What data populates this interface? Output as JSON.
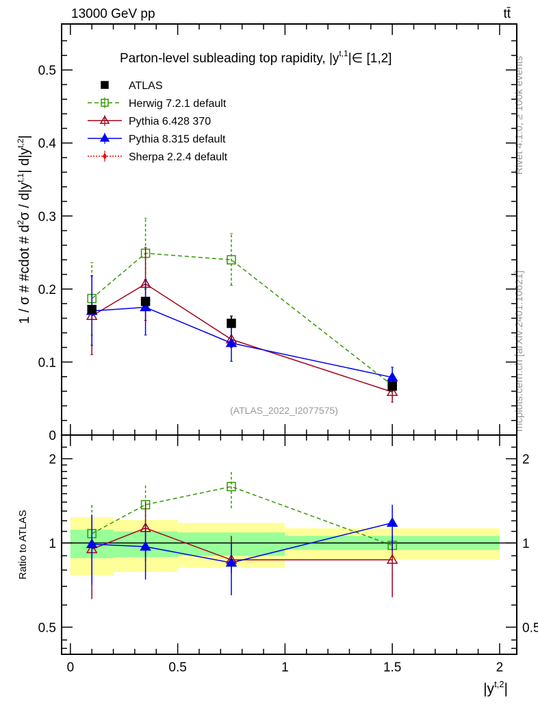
{
  "header": {
    "left": "13000 GeV pp",
    "right": "tt̄"
  },
  "side_labels": {
    "rivet": "Rivet 4.1.0, ≥ 100k events",
    "mcplots": "mcplots.cern.ch [arXiv:2401.10621]"
  },
  "chart_data": [
    {
      "type": "scatter",
      "title": "Parton-level subleading top rapidity, |y^{t,1}| ∈ [1,2]",
      "title_text": "Parton-level subleading top rapidity, |y",
      "title_sup": "t,1",
      "title_tail": "|∈ [1,2]",
      "ylabel": "1 / σ # #cdot # d²σ / d|y^{t,1}| d|y^{t,2}|",
      "xlabel": "|y^{t,2}|",
      "watermark": "(ATLAS_2022_I2077575)",
      "xlim": [
        -0.041,
        2.08
      ],
      "ylim": [
        0,
        0.563
      ],
      "yticks": [
        0,
        0.1,
        0.2,
        0.3,
        0.4,
        0.5
      ],
      "ytick_labels": [
        "0",
        "0.1",
        "0.2",
        "0.3",
        "0.4",
        "0.5"
      ],
      "legend_position": "top-left",
      "x": [
        0.1,
        0.35,
        0.75,
        1.5
      ],
      "series": [
        {
          "name": "ATLAS",
          "color": "#000000",
          "marker": "square-filled",
          "dash": "none",
          "values": [
            0.172,
            0.183,
            0.153,
            0.067
          ],
          "err_lo": [
            0.172,
            0.183,
            0.153,
            0.067
          ],
          "err_hi": [
            0.172,
            0.183,
            0.163,
            0.067
          ]
        },
        {
          "name": "Herwig 7.2.1 default",
          "color": "#339900",
          "marker": "square-open",
          "dash": "dashed",
          "values": [
            0.187,
            0.249,
            0.24,
            0.068
          ],
          "err_lo": [
            0.137,
            0.2,
            0.205,
            0.06
          ],
          "err_hi": [
            0.236,
            0.297,
            0.276,
            0.075
          ]
        },
        {
          "name": "Pythia 6.428 370",
          "color": "#a0001c",
          "marker": "triangle-open",
          "dash": "solid",
          "values": [
            0.163,
            0.207,
            0.131,
            0.059
          ],
          "err_lo": [
            0.11,
            0.157,
            0.12,
            0.045
          ],
          "err_hi": [
            0.218,
            0.257,
            0.163,
            0.07
          ]
        },
        {
          "name": "Pythia 8.315 default",
          "color": "#0000ee",
          "marker": "triangle-filled",
          "dash": "solid",
          "values": [
            0.17,
            0.175,
            0.126,
            0.079
          ],
          "err_lo": [
            0.123,
            0.137,
            0.101,
            0.065
          ],
          "err_hi": [
            0.218,
            0.213,
            0.15,
            0.093
          ]
        },
        {
          "name": "Sherpa 2.2.4 default",
          "color": "#ee0000",
          "marker": "diamond-filled",
          "dash": "dotted",
          "values": [],
          "err_lo": [],
          "err_hi": []
        }
      ]
    },
    {
      "type": "scatter",
      "ylabel": "Ratio to ATLAS",
      "xlabel": "|y^{t,2}|",
      "yscale": "log",
      "xlim": [
        -0.041,
        2.08
      ],
      "ylim": [
        0.4,
        2.43
      ],
      "yticks": [
        0.5,
        1,
        2
      ],
      "ytick_labels": [
        "0.5",
        "1",
        "2"
      ],
      "xticks": [
        0,
        0.5,
        1,
        1.5,
        2
      ],
      "xtick_labels": [
        "0",
        "0.5",
        "1",
        "1.5",
        "2"
      ],
      "bins": [
        [
          0,
          0.2
        ],
        [
          0.2,
          0.5
        ],
        [
          0.5,
          1.0
        ],
        [
          1.0,
          2.0
        ]
      ],
      "band_green": {
        "color": "#99ff99",
        "lo": [
          0.882,
          0.89,
          0.9,
          0.945
        ],
        "hi": [
          1.115,
          1.1,
          1.09,
          1.06
        ]
      },
      "band_yellow": {
        "color": "#ffff99",
        "lo": [
          0.764,
          0.787,
          0.815,
          0.872
        ],
        "hi": [
          1.236,
          1.208,
          1.18,
          1.128
        ]
      },
      "x": [
        0.1,
        0.35,
        0.75,
        1.5
      ],
      "series": [
        {
          "name": "Herwig 7.2.1 default",
          "values": [
            1.08,
            1.37,
            1.59,
            0.98
          ],
          "err_lo": [
            0.8,
            1.1,
            1.33,
            0.86
          ],
          "err_hi": [
            1.37,
            1.62,
            1.8,
            1.1
          ]
        },
        {
          "name": "Pythia 6.428 370",
          "values": [
            0.95,
            1.13,
            0.87,
            0.87
          ],
          "err_lo": [
            0.63,
            0.86,
            0.78,
            0.64
          ],
          "err_hi": [
            1.26,
            1.4,
            1.06,
            1.06
          ]
        },
        {
          "name": "Pythia 8.315 default",
          "values": [
            0.99,
            0.97,
            0.85,
            1.18
          ],
          "err_lo": [
            0.71,
            0.74,
            0.65,
            0.94
          ],
          "err_hi": [
            1.26,
            1.17,
            1.0,
            1.37
          ]
        }
      ]
    }
  ]
}
